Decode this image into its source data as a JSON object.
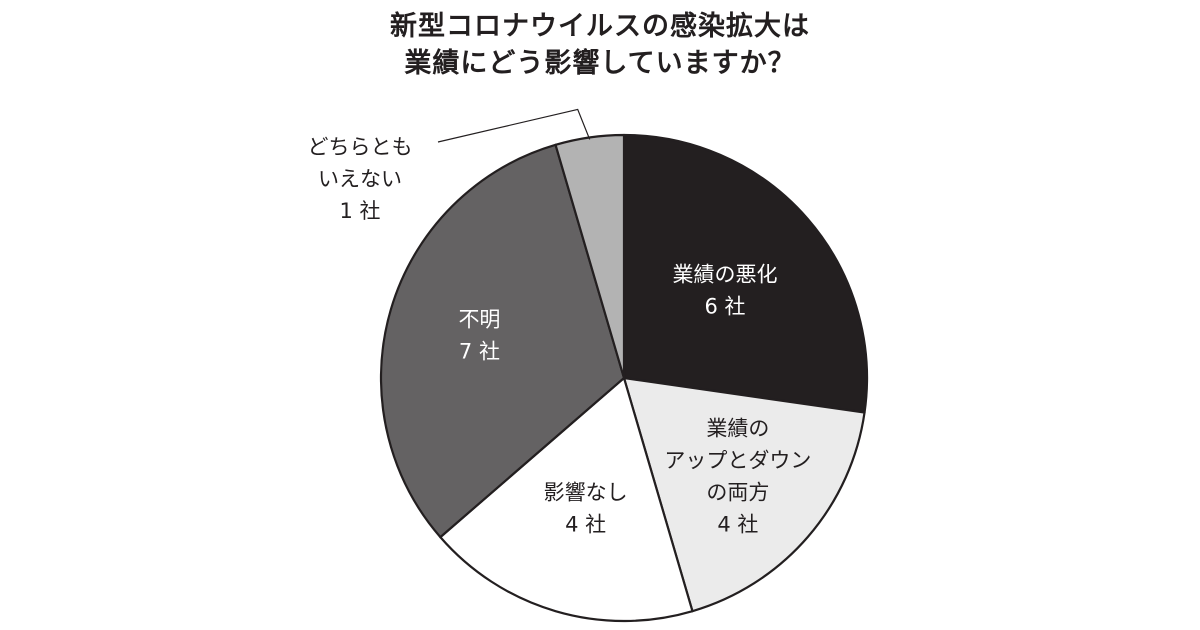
{
  "chart_data": {
    "type": "pie",
    "title_lines": [
      "新型コロナウイルスの感染拡大は",
      "業績にどう影響していますか？"
    ],
    "unit": "社",
    "start_angle_deg": 0,
    "direction": "clockwise",
    "slices": [
      {
        "label_lines": [
          "業績の悪化"
        ],
        "value_text": "6 社",
        "value": 6,
        "color": "#231f20",
        "text_color": "#ffffff"
      },
      {
        "label_lines": [
          "業績の",
          "アップとダウン",
          "の両方"
        ],
        "value_text": "4 社",
        "value": 4,
        "color": "#ebebeb",
        "text_color": "#231f20"
      },
      {
        "label_lines": [
          "影響なし"
        ],
        "value_text": "4 社",
        "value": 4,
        "color": "#ffffff",
        "text_color": "#231f20"
      },
      {
        "label_lines": [
          "不明"
        ],
        "value_text": "7 社",
        "value": 7,
        "color": "#646263",
        "text_color": "#ffffff"
      },
      {
        "label_lines": [
          "どちらとも",
          "いえない"
        ],
        "value_text": "1 社",
        "value": 1,
        "color": "#b3b3b3",
        "text_color": "#231f20",
        "label_outside": true
      }
    ],
    "total": 22,
    "legend": "none"
  }
}
